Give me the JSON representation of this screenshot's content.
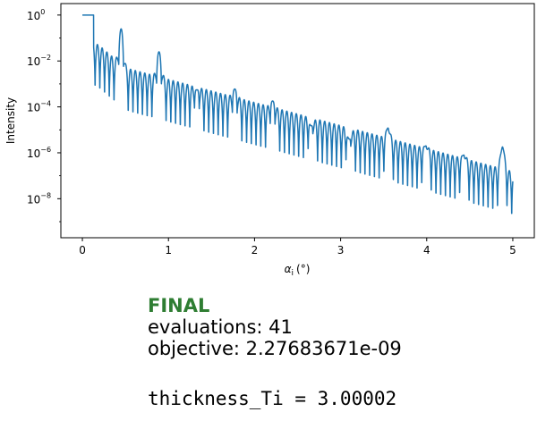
{
  "chart_data": {
    "type": "line",
    "title": "",
    "xlabel_symbol": "α",
    "xlabel_sub": "i",
    "xlabel_unit": "(°)",
    "ylabel": "Intensity",
    "xlim": [
      -0.25,
      5.25
    ],
    "ylim_log10": [
      -9.7,
      0.5
    ],
    "y_scale": "log",
    "grid": false,
    "legend": "none",
    "x_ticks": [
      "0",
      "1",
      "2",
      "3",
      "4",
      "5"
    ],
    "x_tick_values": [
      0,
      1,
      2,
      3,
      4,
      5
    ],
    "y_ticks": [
      {
        "base": "10",
        "exp": "0",
        "value": 1
      },
      {
        "base": "10",
        "exp": "−2",
        "value": 0.01
      },
      {
        "base": "10",
        "exp": "−4",
        "value": 0.0001
      },
      {
        "base": "10",
        "exp": "−6",
        "value": 1e-06
      },
      {
        "base": "10",
        "exp": "−8",
        "value": 1e-08
      }
    ],
    "series": [
      {
        "color": "#1f77b4",
        "x_range": [
          0,
          5
        ],
        "plateau_until_deg": 0.13,
        "bragg_peaks": [
          {
            "x": 0.45,
            "y": 0.25
          },
          {
            "x": 0.89,
            "y": 0.025
          },
          {
            "x": 1.33,
            "y": 0.00055
          },
          {
            "x": 1.77,
            "y": 0.0006
          },
          {
            "x": 2.21,
            "y": 0.00018
          },
          {
            "x": 2.66,
            "y": 1.5e-05
          },
          {
            "x": 3.1,
            "y": 4e-06
          },
          {
            "x": 3.55,
            "y": 1.2e-05
          },
          {
            "x": 3.99,
            "y": 2e-06
          },
          {
            "x": 4.43,
            "y": 8e-07
          },
          {
            "x": 4.88,
            "y": 1.8e-06
          }
        ],
        "baseline_at_x0_5": 0.001,
        "baseline_at_x5": 3e-08,
        "fringes_between_peaks": 7,
        "minimum_depth_decades": 2.2
      }
    ]
  },
  "status": {
    "title": "FINAL",
    "title_color": "#2e7d32",
    "evaluations": "evaluations: 41",
    "objective": "objective: 2.27683671e-09",
    "parameter": "thickness_Ti = 3.00002"
  }
}
